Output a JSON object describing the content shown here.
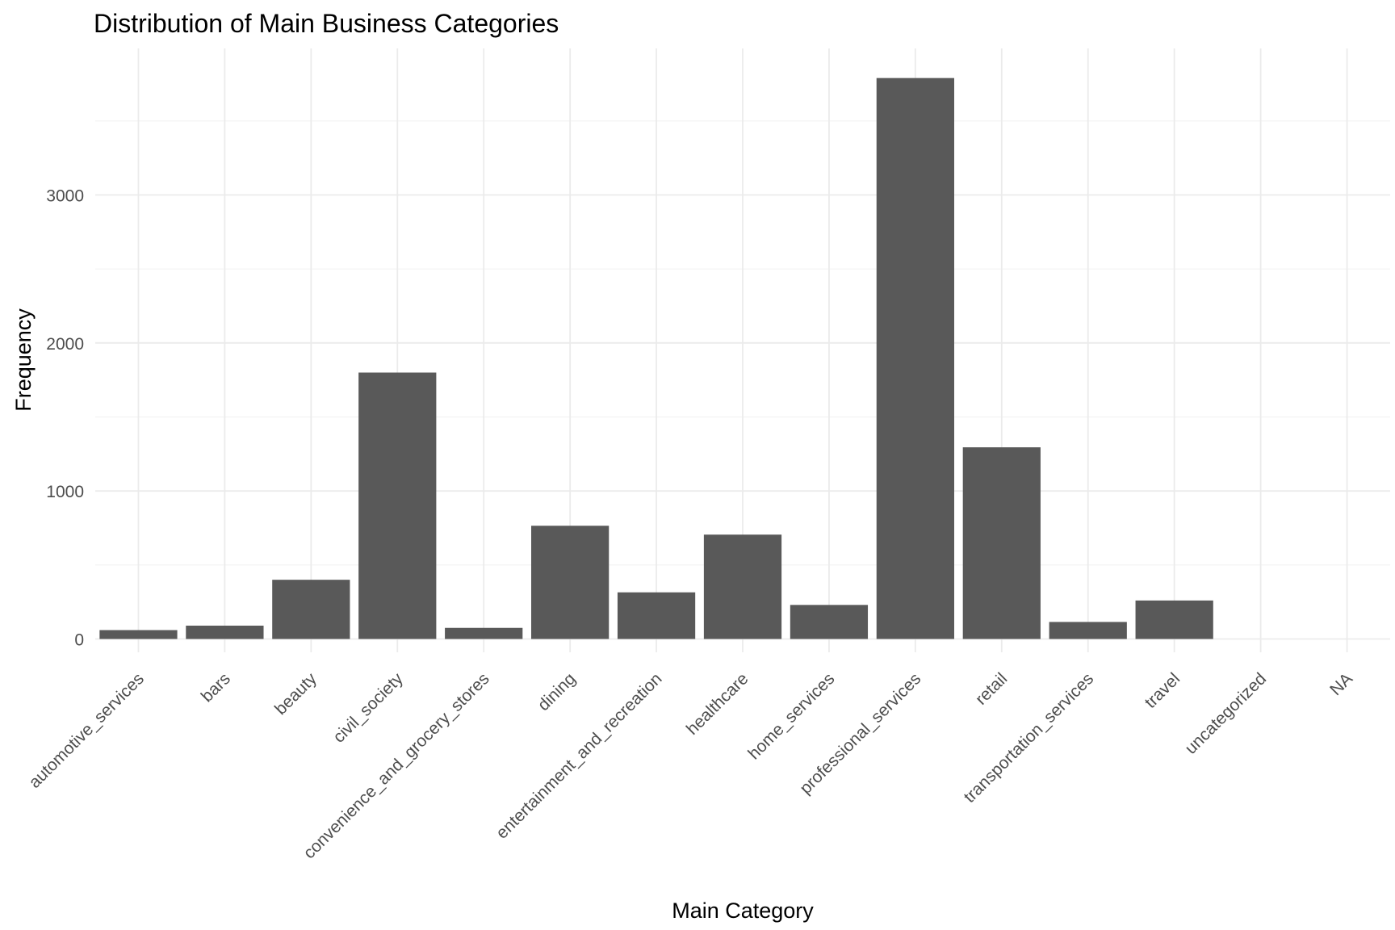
{
  "chart_data": {
    "type": "bar",
    "title": "Distribution of Main Business Categories",
    "xlabel": "Main Category",
    "ylabel": "Frequency",
    "categories": [
      "automotive_services",
      "bars",
      "beauty",
      "civil_society",
      "convenience_and_grocery_stores",
      "dining",
      "entertainment_and_recreation",
      "healthcare",
      "home_services",
      "professional_services",
      "retail",
      "transportation_services",
      "travel",
      "uncategorized",
      "NA"
    ],
    "values": [
      60,
      90,
      400,
      1800,
      75,
      765,
      315,
      705,
      230,
      3790,
      1295,
      115,
      260,
      0,
      0
    ],
    "ylim": [
      -90,
      3990
    ],
    "yticks": [
      0,
      1000,
      2000,
      3000
    ],
    "grid": true,
    "legend": "none",
    "bar_color": "#595959",
    "grid_color": "#ebebeb"
  }
}
